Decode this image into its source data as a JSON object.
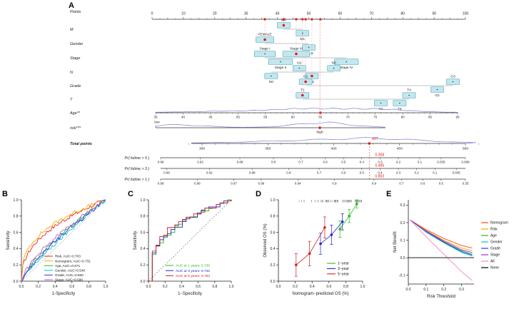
{
  "panel_labels": {
    "A": "A",
    "B": "B",
    "C": "C",
    "D": "D",
    "E": "E"
  },
  "nomogram": {
    "row_labels": {
      "points": "Points",
      "m": "M",
      "gender": "Gender",
      "stage": "Stage",
      "n": "N",
      "grade": "Grade",
      "t": "T",
      "age": "Age**",
      "risk": "risk***",
      "total": "Total points",
      "pr5": "Pr( futime > 5 )",
      "pr3": "Pr( futime > 3 )",
      "pr1": "Pr( futime > 1 )"
    },
    "points_ticks": [
      0,
      10,
      20,
      30,
      40,
      50,
      60,
      70,
      80,
      90,
      100
    ],
    "category_rows": [
      {
        "key": "m",
        "items": [
          {
            "label": "M0",
            "p": 42,
            "level": "up",
            "selected": true
          },
          {
            "label": "M1",
            "p": 48,
            "level": "down",
            "selected": false
          }
        ]
      },
      {
        "key": "gender",
        "items": [
          {
            "label": "FEMALE",
            "p": 36,
            "level": "up",
            "selected": true
          },
          {
            "label": "MALE",
            "p": 50,
            "level": "down",
            "selected": false
          }
        ]
      },
      {
        "key": "stage",
        "items": [
          {
            "label": "Stage I",
            "p": 36,
            "level": "up",
            "selected": false
          },
          {
            "label": "Stage II",
            "p": 41,
            "level": "down",
            "selected": false
          },
          {
            "label": "Stage III",
            "p": 46,
            "level": "up",
            "selected": true
          },
          {
            "label": "Stage IV",
            "p": 62,
            "level": "down",
            "selected": false
          }
        ]
      },
      {
        "key": "n",
        "items": [
          {
            "label": "N0",
            "p": 38,
            "level": "down",
            "selected": false
          },
          {
            "label": "N1",
            "p": 47,
            "level": "up",
            "selected": false
          },
          {
            "label": "N2",
            "p": 51,
            "level": "down",
            "selected": true
          },
          {
            "label": "N3",
            "p": 58,
            "level": "up",
            "selected": false
          }
        ]
      },
      {
        "key": "grade",
        "items": [
          {
            "label": "G1",
            "p": 49,
            "level": "up",
            "selected": true
          },
          {
            "label": "G2",
            "p": 91,
            "level": "down",
            "selected": false
          },
          {
            "label": "G3",
            "p": 96,
            "level": "up",
            "selected": false
          }
        ]
      },
      {
        "key": "t",
        "items": [
          {
            "label": "T1",
            "p": 48,
            "level": "up",
            "selected": true
          },
          {
            "label": "T2",
            "p": 73,
            "level": "down",
            "selected": false
          },
          {
            "label": "T3",
            "p": 79,
            "level": "down",
            "selected": false
          },
          {
            "label": "T4",
            "p": 82,
            "level": "up",
            "selected": false
          }
        ]
      }
    ],
    "age_axis": {
      "min": 35,
      "max": 90,
      "step": 5,
      "selected": 65
    },
    "risk_axis": {
      "low_label": "low",
      "high_label": "high",
      "selected": "high"
    },
    "total_axis": {
      "min": 300,
      "max": 500,
      "ticks": [
        300,
        350,
        400,
        450,
        500
      ],
      "selected": 427,
      "selected_label": "427"
    },
    "pr_rows": [
      {
        "key": "pr5",
        "value_label": "0.358",
        "ticks": [
          {
            "t": "0.96",
            "f": 0.0
          },
          {
            "t": "0.92",
            "f": 0.13
          },
          {
            "t": "0.88",
            "f": 0.26
          },
          {
            "t": "0.8",
            "f": 0.37
          },
          {
            "t": "0.7",
            "f": 0.46
          },
          {
            "t": "0.6",
            "f": 0.54
          },
          {
            "t": "0.5",
            "f": 0.6
          },
          {
            "t": "0.4",
            "f": 0.66
          },
          {
            "t": "0.3",
            "f": 0.72
          },
          {
            "t": "0.2",
            "f": 0.78
          },
          {
            "t": "0.1",
            "f": 0.85
          },
          {
            "t": "0.035",
            "f": 0.92
          },
          {
            "t": "0.008",
            "f": 1.0
          }
        ]
      },
      {
        "key": "pr3",
        "value_label": "0.485",
        "ticks": [
          {
            "t": "0.96",
            "f": 0.02
          },
          {
            "t": "0.92",
            "f": 0.16
          },
          {
            "t": "0.88",
            "f": 0.3
          },
          {
            "t": "0.8",
            "f": 0.42
          },
          {
            "t": "0.7",
            "f": 0.52
          },
          {
            "t": "0.6",
            "f": 0.6
          },
          {
            "t": "0.5",
            "f": 0.66
          },
          {
            "t": "0.4",
            "f": 0.72
          },
          {
            "t": "0.3",
            "f": 0.78
          },
          {
            "t": "0.2",
            "f": 0.84
          },
          {
            "t": "0.1",
            "f": 0.9
          },
          {
            "t": "0.035",
            "f": 0.97
          }
        ]
      },
      {
        "key": "pr1",
        "value_label": "0.802",
        "ticks": [
          {
            "t": "0.99",
            "f": 0.0
          },
          {
            "t": "0.98",
            "f": 0.12
          },
          {
            "t": "0.97",
            "f": 0.24
          },
          {
            "t": "0.96",
            "f": 0.33
          },
          {
            "t": "0.94",
            "f": 0.45
          },
          {
            "t": "0.9",
            "f": 0.57
          },
          {
            "t": "0.8",
            "f": 0.7
          },
          {
            "t": "0.7",
            "f": 0.79
          },
          {
            "t": "0.6",
            "f": 0.86
          },
          {
            "t": "0.5",
            "f": 0.92
          },
          {
            "t": "0.35",
            "f": 1.0
          }
        ]
      }
    ],
    "colors": {
      "box_fill": "#c2e7ee",
      "box_stroke": "#49a8ba",
      "density": "#7b7bd4",
      "marker": "#e81414",
      "dashed": "#e06060"
    }
  },
  "chart_data": [
    {
      "id": "B",
      "type": "line",
      "subtype": "roc",
      "xlabel": "1-Specificity",
      "ylabel": "Sensitivity",
      "xlim": [
        0,
        1
      ],
      "ylim": [
        0,
        1
      ],
      "xticks": [
        0,
        0.2,
        0.4,
        0.6,
        0.8,
        1
      ],
      "yticks": [
        0,
        0.2,
        0.4,
        0.6,
        0.8,
        1
      ],
      "legend_position": "bottom-right",
      "series": [
        {
          "name": "Risk, AUC=0.703",
          "auc": 0.703,
          "color": "#e62323"
        },
        {
          "name": "Nomogram, AUC=0.731",
          "auc": 0.731,
          "color": "#ffa500"
        },
        {
          "name": "Age, AUC=0.571",
          "auc": 0.571,
          "color": "#22bb22"
        },
        {
          "name": "Gender, AUC=0.540",
          "auc": 0.54,
          "color": "#00c5cd"
        },
        {
          "name": "Grade, AUC=0.560",
          "auc": 0.56,
          "color": "#3333ff"
        },
        {
          "name": "Stage, AUC=0.590",
          "auc": 0.59,
          "color": "#c35bc3"
        }
      ]
    },
    {
      "id": "C",
      "type": "line",
      "subtype": "roc-step",
      "xlabel": "1−Specificity",
      "ylabel": "Sensitivity",
      "xlim": [
        0,
        1
      ],
      "ylim": [
        0,
        1
      ],
      "xticks": [
        0,
        0.2,
        0.4,
        0.6,
        0.8,
        1
      ],
      "yticks": [
        0,
        0.2,
        0.4,
        0.6,
        0.8,
        1
      ],
      "diagonal": "dashed",
      "legend_position": "bottom-right",
      "series": [
        {
          "name": "AUC at 1 years: 0.736",
          "auc": 0.736,
          "color": "#22bb22"
        },
        {
          "name": "AUC at 3 years: 0.732",
          "auc": 0.732,
          "color": "#2222cc"
        },
        {
          "name": "AUC at 5 years: 0.762",
          "auc": 0.762,
          "color": "#cc2222"
        }
      ]
    },
    {
      "id": "D",
      "type": "scatter",
      "subtype": "calibration",
      "xlabel": "Nomogram−predicted OS (%)",
      "ylabel": "Observed OS (%)",
      "xlim": [
        0,
        1
      ],
      "ylim": [
        0,
        1
      ],
      "xticks": [
        0,
        0.2,
        0.4,
        0.6,
        0.8,
        1
      ],
      "yticks": [
        0,
        0.2,
        0.4,
        0.6,
        0.8,
        1
      ],
      "legend_position": "bottom-right",
      "rug": "top",
      "series": [
        {
          "name": "1−year",
          "color": "#22bb22",
          "points": [
            [
              0.73,
              0.64
            ],
            [
              0.84,
              0.8
            ],
            [
              0.93,
              0.95
            ]
          ],
          "err": [
            0.1,
            0.08,
            0.05
          ]
        },
        {
          "name": "3−year",
          "color": "#2222cc",
          "points": [
            [
              0.5,
              0.46
            ],
            [
              0.63,
              0.57
            ],
            [
              0.76,
              0.73
            ]
          ],
          "err": [
            0.13,
            0.12,
            0.1
          ]
        },
        {
          "name": "5−year",
          "color": "#cc2222",
          "points": [
            [
              0.21,
              0.2
            ],
            [
              0.37,
              0.34
            ],
            [
              0.55,
              0.66
            ]
          ],
          "err": [
            0.14,
            0.15,
            0.13
          ]
        }
      ]
    },
    {
      "id": "E",
      "type": "line",
      "subtype": "dca",
      "xlabel": "Risk Threshold",
      "ylabel": "Net Benefit",
      "xlim": [
        0,
        0.37
      ],
      "ylim": [
        -0.15,
        0.33
      ],
      "xticks": [
        0,
        0.1,
        0.2,
        0.3
      ],
      "yticks": [
        -0.1,
        0,
        0.1,
        0.2,
        0.3
      ],
      "legend_position": "right",
      "series": [
        {
          "name": "Nomogram",
          "color": "#ff4500",
          "points": [
            [
              0.01,
              0.215
            ],
            [
              0.1,
              0.16
            ],
            [
              0.2,
              0.11
            ],
            [
              0.3,
              0.07
            ],
            [
              0.36,
              0.055
            ]
          ]
        },
        {
          "name": "Risk",
          "color": "#ffa500",
          "points": [
            [
              0.01,
              0.215
            ],
            [
              0.1,
              0.155
            ],
            [
              0.2,
              0.1
            ],
            [
              0.3,
              0.055
            ],
            [
              0.36,
              0.04
            ]
          ]
        },
        {
          "name": "Age",
          "color": "#22bb22",
          "points": [
            [
              0.01,
              0.215
            ],
            [
              0.1,
              0.15
            ],
            [
              0.2,
              0.09
            ],
            [
              0.3,
              0.04
            ],
            [
              0.36,
              0.02
            ]
          ]
        },
        {
          "name": "Gender",
          "color": "#00c5cd",
          "points": [
            [
              0.01,
              0.215
            ],
            [
              0.1,
              0.145
            ],
            [
              0.2,
              0.085
            ],
            [
              0.3,
              0.03
            ],
            [
              0.36,
              0.01
            ]
          ]
        },
        {
          "name": "Grade",
          "color": "#3333ff",
          "points": [
            [
              0.01,
              0.215
            ],
            [
              0.1,
              0.15
            ],
            [
              0.2,
              0.088
            ],
            [
              0.3,
              0.035
            ],
            [
              0.36,
              0.015
            ]
          ]
        },
        {
          "name": "Stage",
          "color": "#9932cc",
          "points": [
            [
              0.01,
              0.215
            ],
            [
              0.1,
              0.152
            ],
            [
              0.2,
              0.095
            ],
            [
              0.3,
              0.045
            ],
            [
              0.36,
              0.03
            ]
          ]
        },
        {
          "name": "All",
          "color": "#ff80c0",
          "points": [
            [
              0.01,
              0.215
            ],
            [
              0.1,
              0.12
            ],
            [
              0.2,
              0.02
            ],
            [
              0.3,
              -0.08
            ],
            [
              0.36,
              -0.13
            ]
          ]
        },
        {
          "name": "None",
          "color": "#000000",
          "points": [
            [
              0,
              0
            ],
            [
              0.37,
              0
            ]
          ]
        }
      ]
    }
  ]
}
